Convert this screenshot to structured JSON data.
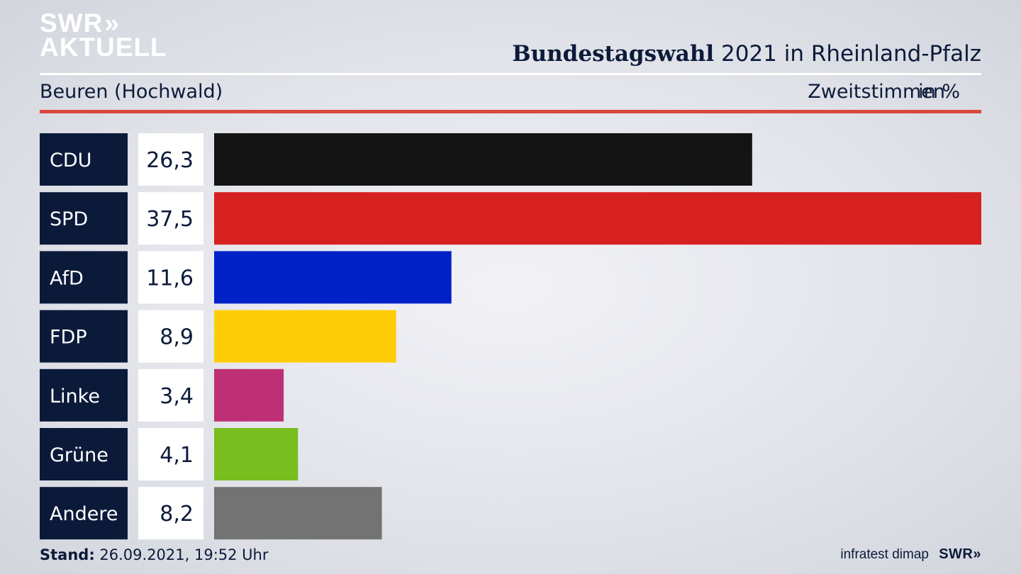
{
  "header": {
    "logo_line1": "SWR",
    "logo_chevrons": "»",
    "logo_line2": "AKTUELL",
    "title_bold": "Bundestagswahl",
    "title_rest": " 2021 in Rheinland-Pfalz",
    "location": "Beuren (Hochwald)",
    "metric": "Zweitstimmen",
    "unit": "in %"
  },
  "colors": {
    "label_bg": "#0c1a3a",
    "value_bg": "#ffffff",
    "accent_rule": "#d9473d"
  },
  "chart_data": {
    "type": "bar",
    "orientation": "horizontal",
    "categories": [
      "CDU",
      "SPD",
      "AfD",
      "FDP",
      "Linke",
      "Grüne",
      "Andere"
    ],
    "values": [
      26.3,
      37.5,
      11.6,
      8.9,
      3.4,
      4.1,
      8.2
    ],
    "value_labels": [
      "26,3",
      "37,5",
      "11,6",
      "8,9",
      "3,4",
      "4,1",
      "8,2"
    ],
    "colors": [
      "#141414",
      "#d72020",
      "#0021c8",
      "#ffcd08",
      "#be3075",
      "#78be1e",
      "#737373"
    ],
    "xlim": [
      0,
      37.5
    ],
    "grid": false,
    "legend": "none"
  },
  "footer": {
    "stand_label": "Stand:",
    "stand_value": " 26.09.2021, 19:52 Uhr",
    "source": "infratest dimap",
    "brand": "SWR»"
  }
}
